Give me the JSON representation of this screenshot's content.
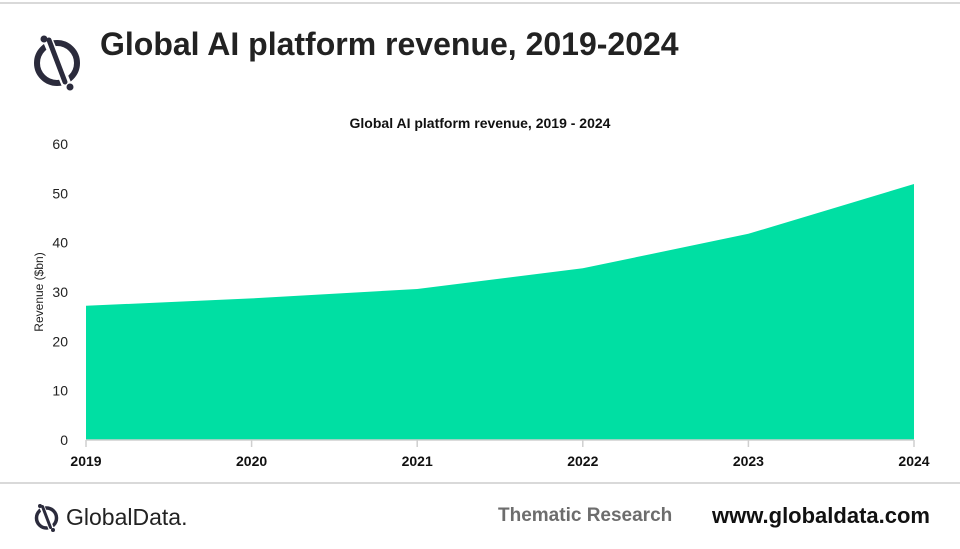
{
  "header": {
    "title": "Global AI platform revenue, 2019-2024",
    "logo_icon": "globaldata-logo-icon"
  },
  "chart_data": {
    "type": "area",
    "title": "Global AI platform revenue, 2019      - 2024",
    "xlabel": "",
    "ylabel": "Revenue ($bn)",
    "x": [
      "2019",
      "2020",
      "2021",
      "2022",
      "2023",
      "2024"
    ],
    "series": [
      {
        "values": [
          27.2,
          28.7,
          30.6,
          34.8,
          41.8,
          51.9
        ]
      }
    ],
    "ylim": [
      0,
      60
    ],
    "yticks": [
      "0",
      "10",
      "20",
      "30",
      "40",
      "50",
      "60"
    ],
    "grid": false,
    "legend": "none",
    "fill_color": "#00DFA3"
  },
  "footer": {
    "brand": "GlobalData.",
    "research": "Thematic Research",
    "url": "www.globaldata.com"
  }
}
